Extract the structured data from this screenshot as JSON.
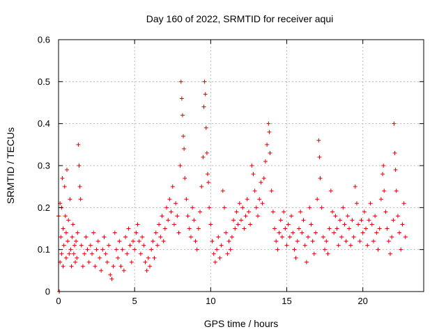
{
  "chart_data": {
    "type": "scatter",
    "title": "Day 160 of 2022, SRMTID for receiver aqui",
    "xlabel": "GPS time / hours",
    "ylabel": "SRMTID / TECUs",
    "xlim": [
      0,
      24
    ],
    "ylim": [
      0,
      0.6
    ],
    "xticks": [
      0,
      5,
      10,
      15,
      20
    ],
    "xtick_labels": [
      "0",
      "5",
      "10",
      "15",
      "20"
    ],
    "yticks": [
      0,
      0.1,
      0.2,
      0.3,
      0.4,
      0.5,
      0.6
    ],
    "ytick_labels": [
      "0",
      "0.1",
      "0.2",
      "0.3",
      "0.4",
      "0.5",
      "0.6"
    ],
    "grid": true,
    "marker": "+",
    "color": "#e00000",
    "series": [
      {
        "name": "SRMTID",
        "points": [
          [
            0.0,
            0.18
          ],
          [
            0.05,
            0.0
          ],
          [
            0.1,
            0.21
          ],
          [
            0.1,
            0.07
          ],
          [
            0.15,
            0.13
          ],
          [
            0.2,
            0.2
          ],
          [
            0.2,
            0.09
          ],
          [
            0.25,
            0.27
          ],
          [
            0.3,
            0.15
          ],
          [
            0.3,
            0.06
          ],
          [
            0.35,
            0.11
          ],
          [
            0.4,
            0.25
          ],
          [
            0.45,
            0.18
          ],
          [
            0.5,
            0.08
          ],
          [
            0.5,
            0.14
          ],
          [
            0.55,
            0.29
          ],
          [
            0.6,
            0.12
          ],
          [
            0.65,
            0.17
          ],
          [
            0.7,
            0.09
          ],
          [
            0.75,
            0.22
          ],
          [
            0.8,
            0.1
          ],
          [
            0.85,
            0.06
          ],
          [
            0.9,
            0.13
          ],
          [
            0.95,
            0.16
          ],
          [
            1.0,
            0.09
          ],
          [
            1.05,
            0.11
          ],
          [
            1.1,
            0.07
          ],
          [
            1.15,
            0.12
          ],
          [
            1.2,
            0.08
          ],
          [
            1.25,
            0.14
          ],
          [
            1.3,
            0.35
          ],
          [
            1.35,
            0.3
          ],
          [
            1.4,
            0.25
          ],
          [
            1.45,
            0.22
          ],
          [
            1.5,
            0.11
          ],
          [
            1.6,
            0.06
          ],
          [
            1.7,
            0.09
          ],
          [
            1.8,
            0.13
          ],
          [
            1.9,
            0.1
          ],
          [
            2.0,
            0.07
          ],
          [
            2.1,
            0.11
          ],
          [
            2.2,
            0.09
          ],
          [
            2.3,
            0.14
          ],
          [
            2.4,
            0.06
          ],
          [
            2.5,
            0.1
          ],
          [
            2.6,
            0.12
          ],
          [
            2.7,
            0.08
          ],
          [
            2.8,
            0.05
          ],
          [
            2.9,
            0.1
          ],
          [
            3.0,
            0.13
          ],
          [
            3.1,
            0.09
          ],
          [
            3.2,
            0.07
          ],
          [
            3.3,
            0.11
          ],
          [
            3.4,
            0.04
          ],
          [
            3.5,
            0.03
          ],
          [
            3.6,
            0.06
          ],
          [
            3.7,
            0.14
          ],
          [
            3.8,
            0.1
          ],
          [
            3.9,
            0.08
          ],
          [
            4.0,
            0.12
          ],
          [
            4.1,
            0.06
          ],
          [
            4.2,
            0.1
          ],
          [
            4.3,
            0.05
          ],
          [
            4.4,
            0.13
          ],
          [
            4.5,
            0.09
          ],
          [
            4.6,
            0.15
          ],
          [
            4.7,
            0.11
          ],
          [
            4.8,
            0.07
          ],
          [
            4.9,
            0.12
          ],
          [
            5.0,
            0.1
          ],
          [
            5.1,
            0.14
          ],
          [
            5.2,
            0.16
          ],
          [
            5.3,
            0.12
          ],
          [
            5.4,
            0.09
          ],
          [
            5.5,
            0.13
          ],
          [
            5.6,
            0.11
          ],
          [
            5.7,
            0.07
          ],
          [
            5.8,
            0.05
          ],
          [
            5.9,
            0.08
          ],
          [
            6.0,
            0.06
          ],
          [
            6.1,
            0.1
          ],
          [
            6.2,
            0.12
          ],
          [
            6.3,
            0.08
          ],
          [
            6.4,
            0.14
          ],
          [
            6.5,
            0.11
          ],
          [
            6.6,
            0.16
          ],
          [
            6.7,
            0.13
          ],
          [
            6.8,
            0.18
          ],
          [
            6.9,
            0.12
          ],
          [
            7.0,
            0.15
          ],
          [
            7.1,
            0.2
          ],
          [
            7.2,
            0.17
          ],
          [
            7.3,
            0.22
          ],
          [
            7.4,
            0.19
          ],
          [
            7.5,
            0.25
          ],
          [
            7.6,
            0.16
          ],
          [
            7.7,
            0.21
          ],
          [
            7.8,
            0.18
          ],
          [
            7.9,
            0.14
          ],
          [
            8.0,
            0.3
          ],
          [
            8.05,
            0.5
          ],
          [
            8.1,
            0.46
          ],
          [
            8.15,
            0.42
          ],
          [
            8.2,
            0.37
          ],
          [
            8.25,
            0.34
          ],
          [
            8.3,
            0.27
          ],
          [
            8.4,
            0.22
          ],
          [
            8.5,
            0.18
          ],
          [
            8.6,
            0.15
          ],
          [
            8.7,
            0.13
          ],
          [
            8.8,
            0.2
          ],
          [
            8.9,
            0.17
          ],
          [
            9.0,
            0.12
          ],
          [
            9.1,
            0.1
          ],
          [
            9.2,
            0.15
          ],
          [
            9.3,
            0.19
          ],
          [
            9.4,
            0.25
          ],
          [
            9.5,
            0.32
          ],
          [
            9.55,
            0.44
          ],
          [
            9.6,
            0.5
          ],
          [
            9.65,
            0.47
          ],
          [
            9.7,
            0.39
          ],
          [
            9.75,
            0.33
          ],
          [
            9.8,
            0.28
          ],
          [
            9.85,
            0.26
          ],
          [
            9.9,
            0.2
          ],
          [
            10.0,
            0.16
          ],
          [
            10.1,
            0.12
          ],
          [
            10.2,
            0.09
          ],
          [
            10.3,
            0.07
          ],
          [
            10.4,
            0.1
          ],
          [
            10.5,
            0.13
          ],
          [
            10.6,
            0.08
          ],
          [
            10.7,
            0.11
          ],
          [
            10.8,
            0.24
          ],
          [
            10.9,
            0.2
          ],
          [
            11.0,
            0.14
          ],
          [
            11.1,
            0.09
          ],
          [
            11.2,
            0.12
          ],
          [
            11.3,
            0.1
          ],
          [
            11.4,
            0.13
          ],
          [
            11.5,
            0.17
          ],
          [
            11.6,
            0.15
          ],
          [
            11.7,
            0.19
          ],
          [
            11.8,
            0.16
          ],
          [
            11.9,
            0.21
          ],
          [
            12.0,
            0.17
          ],
          [
            12.1,
            0.2
          ],
          [
            12.2,
            0.15
          ],
          [
            12.3,
            0.18
          ],
          [
            12.4,
            0.22
          ],
          [
            12.5,
            0.19
          ],
          [
            12.6,
            0.16
          ],
          [
            12.7,
            0.3
          ],
          [
            12.8,
            0.28
          ],
          [
            12.9,
            0.24
          ],
          [
            13.0,
            0.2
          ],
          [
            13.1,
            0.18
          ],
          [
            13.2,
            0.22
          ],
          [
            13.3,
            0.26
          ],
          [
            13.4,
            0.21
          ],
          [
            13.5,
            0.27
          ],
          [
            13.6,
            0.31
          ],
          [
            13.7,
            0.35
          ],
          [
            13.8,
            0.4
          ],
          [
            13.85,
            0.38
          ],
          [
            13.9,
            0.33
          ],
          [
            14.0,
            0.24
          ],
          [
            14.1,
            0.19
          ],
          [
            14.2,
            0.15
          ],
          [
            14.3,
            0.12
          ],
          [
            14.4,
            0.1
          ],
          [
            14.5,
            0.14
          ],
          [
            14.6,
            0.17
          ],
          [
            14.7,
            0.13
          ],
          [
            14.8,
            0.19
          ],
          [
            14.9,
            0.15
          ],
          [
            15.0,
            0.11
          ],
          [
            15.1,
            0.16
          ],
          [
            15.2,
            0.13
          ],
          [
            15.3,
            0.18
          ],
          [
            15.4,
            0.14
          ],
          [
            15.5,
            0.1
          ],
          [
            15.6,
            0.08
          ],
          [
            15.7,
            0.12
          ],
          [
            15.8,
            0.15
          ],
          [
            15.9,
            0.19
          ],
          [
            16.0,
            0.14
          ],
          [
            16.1,
            0.17
          ],
          [
            16.2,
            0.11
          ],
          [
            16.3,
            0.07
          ],
          [
            16.4,
            0.13
          ],
          [
            16.5,
            0.2
          ],
          [
            16.6,
            0.16
          ],
          [
            16.7,
            0.12
          ],
          [
            16.8,
            0.09
          ],
          [
            16.9,
            0.14
          ],
          [
            17.0,
            0.22
          ],
          [
            17.1,
            0.36
          ],
          [
            17.15,
            0.32
          ],
          [
            17.2,
            0.27
          ],
          [
            17.3,
            0.2
          ],
          [
            17.4,
            0.13
          ],
          [
            17.5,
            0.1
          ],
          [
            17.6,
            0.12
          ],
          [
            17.7,
            0.09
          ],
          [
            17.8,
            0.15
          ],
          [
            17.9,
            0.24
          ],
          [
            18.0,
            0.19
          ],
          [
            18.1,
            0.14
          ],
          [
            18.2,
            0.18
          ],
          [
            18.3,
            0.15
          ],
          [
            18.4,
            0.11
          ],
          [
            18.5,
            0.17
          ],
          [
            18.6,
            0.13
          ],
          [
            18.7,
            0.2
          ],
          [
            18.8,
            0.16
          ],
          [
            18.9,
            0.12
          ],
          [
            19.0,
            0.18
          ],
          [
            19.1,
            0.15
          ],
          [
            19.2,
            0.11
          ],
          [
            19.3,
            0.17
          ],
          [
            19.4,
            0.13
          ],
          [
            19.5,
            0.25
          ],
          [
            19.6,
            0.21
          ],
          [
            19.7,
            0.16
          ],
          [
            19.8,
            0.12
          ],
          [
            19.9,
            0.17
          ],
          [
            20.0,
            0.14
          ],
          [
            20.1,
            0.19
          ],
          [
            20.2,
            0.15
          ],
          [
            20.3,
            0.11
          ],
          [
            20.4,
            0.17
          ],
          [
            20.5,
            0.21
          ],
          [
            20.6,
            0.16
          ],
          [
            20.7,
            0.12
          ],
          [
            20.8,
            0.18
          ],
          [
            20.9,
            0.14
          ],
          [
            21.0,
            0.1
          ],
          [
            21.1,
            0.15
          ],
          [
            21.2,
            0.22
          ],
          [
            21.3,
            0.28
          ],
          [
            21.35,
            0.3
          ],
          [
            21.4,
            0.24
          ],
          [
            21.5,
            0.19
          ],
          [
            21.6,
            0.15
          ],
          [
            21.7,
            0.12
          ],
          [
            21.8,
            0.09
          ],
          [
            21.9,
            0.13
          ],
          [
            22.0,
            0.17
          ],
          [
            22.05,
            0.4
          ],
          [
            22.1,
            0.33
          ],
          [
            22.15,
            0.29
          ],
          [
            22.2,
            0.24
          ],
          [
            22.3,
            0.18
          ],
          [
            22.4,
            0.14
          ],
          [
            22.5,
            0.1
          ],
          [
            22.6,
            0.16
          ],
          [
            22.7,
            0.21
          ],
          [
            22.8,
            0.13
          ]
        ]
      }
    ]
  }
}
